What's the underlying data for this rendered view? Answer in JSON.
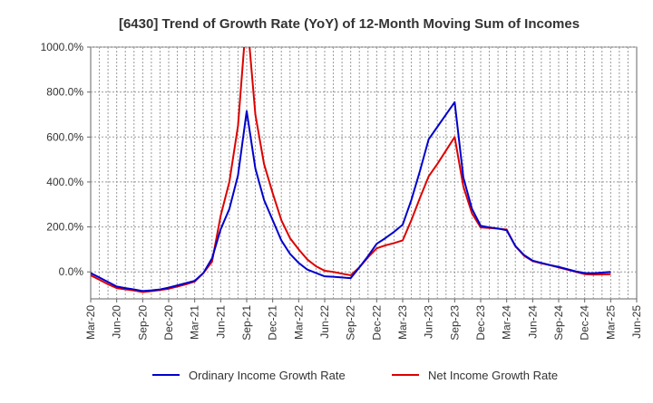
{
  "chart_data": {
    "type": "line",
    "title": "[6430]  Trend of Growth Rate (YoY) of 12-Month Moving Sum of Incomes",
    "xlabel": "",
    "ylabel": "",
    "ylim": [
      -120,
      1000
    ],
    "yticks": [
      0,
      200,
      400,
      600,
      800,
      1000
    ],
    "ytick_labels": [
      "0.0%",
      "200.0%",
      "400.0%",
      "600.0%",
      "800.0%",
      "1000.0%"
    ],
    "x_tick_labels": [
      "Mar-20",
      "Jun-20",
      "Sep-20",
      "Dec-20",
      "Mar-21",
      "Jun-21",
      "Sep-21",
      "Dec-21",
      "Mar-22",
      "Jun-22",
      "Sep-22",
      "Dec-22",
      "Mar-23",
      "Jun-23",
      "Sep-23",
      "Dec-23",
      "Mar-24",
      "Jun-24",
      "Sep-24",
      "Dec-24",
      "Mar-25",
      "Jun-25"
    ],
    "x_start": "2020-03",
    "x_end": "2025-06",
    "grid": true,
    "legend_position": "bottom",
    "series": [
      {
        "name": "Ordinary Income Growth Rate",
        "color": "#0000cc",
        "points": [
          [
            "2020-03",
            -5
          ],
          [
            "2020-04",
            -25
          ],
          [
            "2020-05",
            -45
          ],
          [
            "2020-06",
            -65
          ],
          [
            "2020-07",
            -72
          ],
          [
            "2020-08",
            -78
          ],
          [
            "2020-09",
            -85
          ],
          [
            "2020-10",
            -82
          ],
          [
            "2020-11",
            -78
          ],
          [
            "2020-12",
            -70
          ],
          [
            "2021-01",
            -60
          ],
          [
            "2021-02",
            -50
          ],
          [
            "2021-03",
            -40
          ],
          [
            "2021-04",
            -5
          ],
          [
            "2021-05",
            60
          ],
          [
            "2021-06",
            190
          ],
          [
            "2021-07",
            280
          ],
          [
            "2021-08",
            430
          ],
          [
            "2021-09",
            715
          ],
          [
            "2021-10",
            460
          ],
          [
            "2021-11",
            320
          ],
          [
            "2021-12",
            230
          ],
          [
            "2022-01",
            140
          ],
          [
            "2022-02",
            80
          ],
          [
            "2022-03",
            40
          ],
          [
            "2022-04",
            10
          ],
          [
            "2022-05",
            -5
          ],
          [
            "2022-06",
            -20
          ],
          [
            "2022-07",
            -22
          ],
          [
            "2022-08",
            -25
          ],
          [
            "2022-09",
            -28
          ],
          [
            "2022-10",
            20
          ],
          [
            "2022-11",
            70
          ],
          [
            "2022-12",
            125
          ],
          [
            "2023-01",
            150
          ],
          [
            "2023-02",
            178
          ],
          [
            "2023-03",
            210
          ],
          [
            "2023-04",
            320
          ],
          [
            "2023-05",
            450
          ],
          [
            "2023-06",
            590
          ],
          [
            "2023-07",
            645
          ],
          [
            "2023-08",
            700
          ],
          [
            "2023-09",
            755
          ],
          [
            "2023-10",
            420
          ],
          [
            "2023-11",
            280
          ],
          [
            "2023-12",
            205
          ],
          [
            "2024-01",
            198
          ],
          [
            "2024-02",
            193
          ],
          [
            "2024-03",
            185
          ],
          [
            "2024-04",
            115
          ],
          [
            "2024-05",
            75
          ],
          [
            "2024-06",
            50
          ],
          [
            "2024-07",
            40
          ],
          [
            "2024-08",
            30
          ],
          [
            "2024-09",
            22
          ],
          [
            "2024-10",
            12
          ],
          [
            "2024-11",
            2
          ],
          [
            "2024-12",
            -5
          ],
          [
            "2025-01",
            -6
          ],
          [
            "2025-02",
            -3
          ],
          [
            "2025-03",
            0
          ]
        ]
      },
      {
        "name": "Net Income Growth Rate",
        "color": "#dd0000",
        "points": [
          [
            "2020-03",
            -15
          ],
          [
            "2020-04",
            -35
          ],
          [
            "2020-05",
            -55
          ],
          [
            "2020-06",
            -72
          ],
          [
            "2020-07",
            -78
          ],
          [
            "2020-08",
            -83
          ],
          [
            "2020-09",
            -90
          ],
          [
            "2020-10",
            -86
          ],
          [
            "2020-11",
            -81
          ],
          [
            "2020-12",
            -75
          ],
          [
            "2021-01",
            -65
          ],
          [
            "2021-02",
            -55
          ],
          [
            "2021-03",
            -43
          ],
          [
            "2021-04",
            -5
          ],
          [
            "2021-05",
            45
          ],
          [
            "2021-06",
            250
          ],
          [
            "2021-07",
            400
          ],
          [
            "2021-08",
            650
          ],
          [
            "2021-09",
            1150
          ],
          [
            "2021-10",
            700
          ],
          [
            "2021-11",
            480
          ],
          [
            "2021-12",
            350
          ],
          [
            "2022-01",
            230
          ],
          [
            "2022-02",
            150
          ],
          [
            "2022-03",
            100
          ],
          [
            "2022-04",
            55
          ],
          [
            "2022-05",
            25
          ],
          [
            "2022-06",
            5
          ],
          [
            "2022-07",
            0
          ],
          [
            "2022-08",
            -8
          ],
          [
            "2022-09",
            -15
          ],
          [
            "2022-10",
            20
          ],
          [
            "2022-11",
            65
          ],
          [
            "2022-12",
            105
          ],
          [
            "2023-01",
            118
          ],
          [
            "2023-02",
            128
          ],
          [
            "2023-03",
            140
          ],
          [
            "2023-04",
            230
          ],
          [
            "2023-05",
            330
          ],
          [
            "2023-06",
            425
          ],
          [
            "2023-07",
            480
          ],
          [
            "2023-08",
            540
          ],
          [
            "2023-09",
            600
          ],
          [
            "2023-10",
            380
          ],
          [
            "2023-11",
            260
          ],
          [
            "2023-12",
            198
          ],
          [
            "2024-01",
            195
          ],
          [
            "2024-02",
            192
          ],
          [
            "2024-03",
            188
          ],
          [
            "2024-04",
            115
          ],
          [
            "2024-05",
            72
          ],
          [
            "2024-06",
            48
          ],
          [
            "2024-07",
            38
          ],
          [
            "2024-08",
            30
          ],
          [
            "2024-09",
            20
          ],
          [
            "2024-10",
            10
          ],
          [
            "2024-11",
            0
          ],
          [
            "2024-12",
            -10
          ],
          [
            "2025-01",
            -12
          ],
          [
            "2025-02",
            -11
          ],
          [
            "2025-03",
            -10
          ]
        ]
      }
    ]
  }
}
